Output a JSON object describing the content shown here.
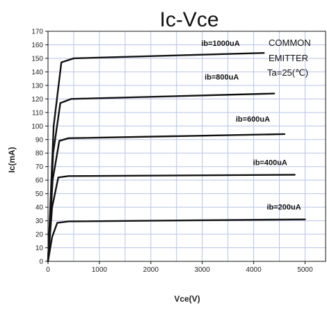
{
  "chart_data": {
    "type": "line",
    "title": "Ic-Vce",
    "xlabel": "Vce(V)",
    "ylabel": "Ic(mA)",
    "xlim": [
      0,
      5400
    ],
    "ylim": [
      0,
      170
    ],
    "x_ticks": [
      0,
      1000,
      2000,
      3000,
      4000,
      5000
    ],
    "y_ticks": [
      0,
      10,
      20,
      30,
      40,
      50,
      60,
      70,
      80,
      90,
      100,
      110,
      120,
      130,
      140,
      150,
      160,
      170
    ],
    "x_minor_step": 500,
    "grid": true,
    "grid_color": "#b9c3e6",
    "line_color": "#111111",
    "annotations": [
      "COMMON",
      "EMITTER",
      "Ta=25(℃)"
    ],
    "series": [
      {
        "name": "ib=200uA",
        "x": [
          0,
          80,
          180,
          400,
          5000
        ],
        "y": [
          0,
          18,
          28.5,
          29.5,
          31
        ]
      },
      {
        "name": "ib=400uA",
        "x": [
          0,
          80,
          200,
          400,
          4800
        ],
        "y": [
          0,
          40,
          62,
          63,
          64
        ]
      },
      {
        "name": "ib=600uA",
        "x": [
          0,
          90,
          220,
          400,
          4600
        ],
        "y": [
          0,
          60,
          89,
          91,
          94
        ]
      },
      {
        "name": "ib=800uA",
        "x": [
          0,
          100,
          240,
          450,
          4400
        ],
        "y": [
          0,
          80,
          117,
          120,
          124
        ]
      },
      {
        "name": "ib=1000uA",
        "x": [
          0,
          110,
          260,
          500,
          4200
        ],
        "y": [
          0,
          100,
          147,
          150,
          154
        ]
      }
    ]
  }
}
